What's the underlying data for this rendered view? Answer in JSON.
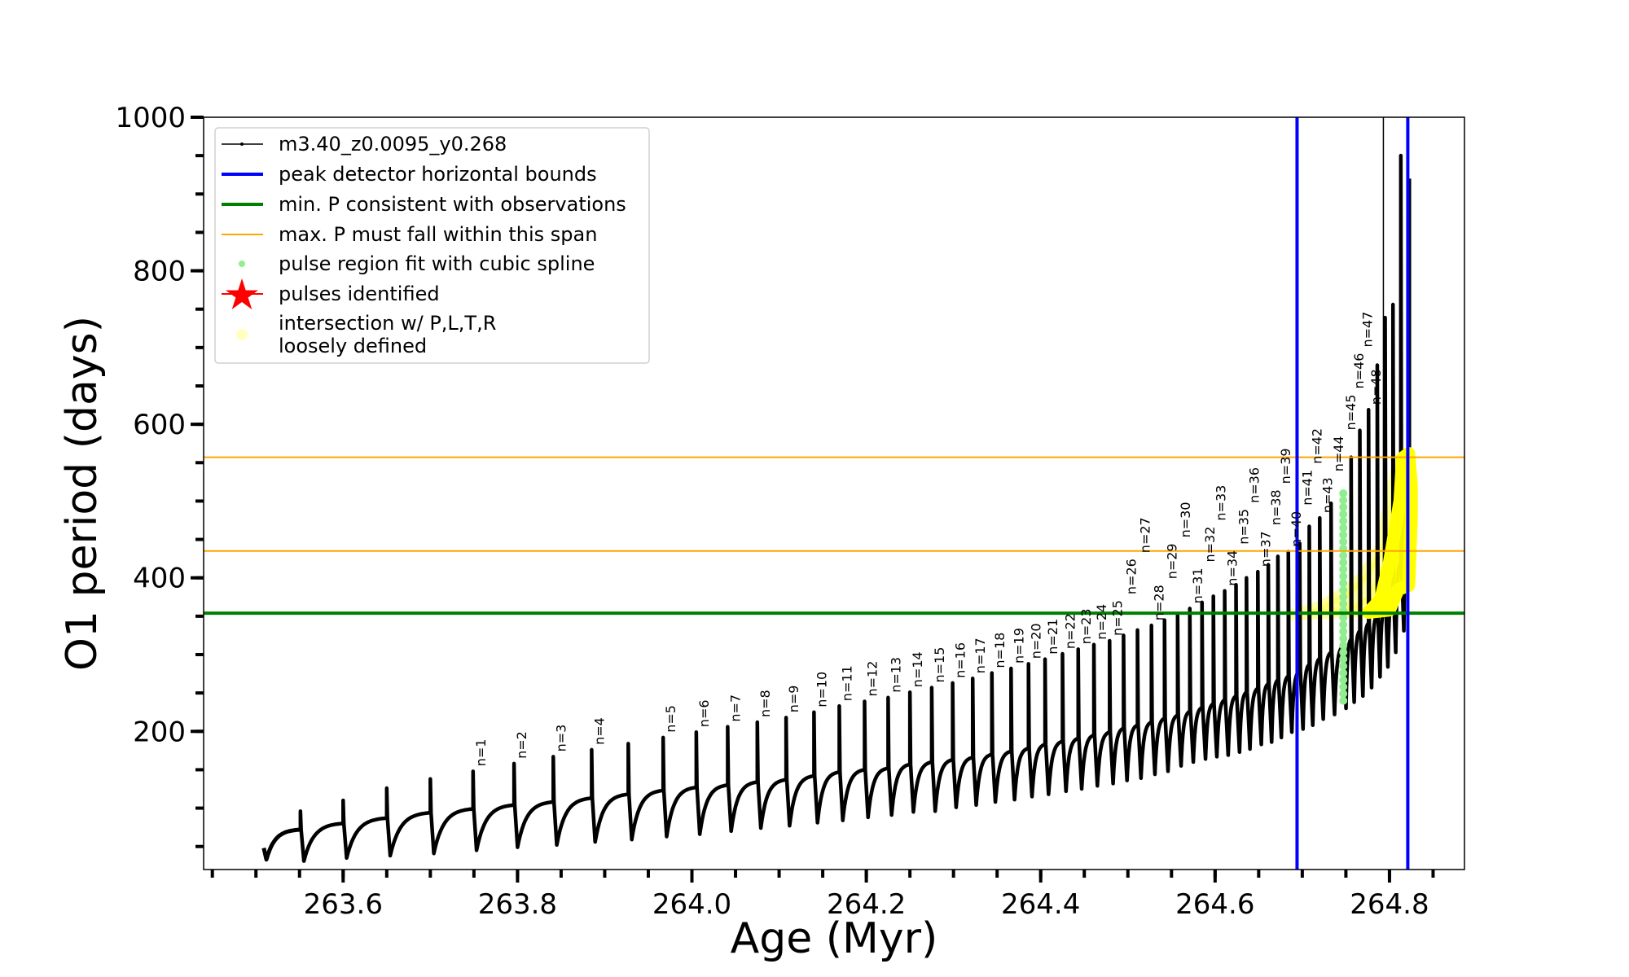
{
  "chart_data": {
    "type": "line",
    "xlabel": "Age (Myr)",
    "ylabel": "O1 period (days)",
    "xlim": [
      263.44,
      264.886
    ],
    "ylim": [
      20,
      1000
    ],
    "x_ticks": [
      "263.6",
      "263.8",
      "264.0",
      "264.2",
      "264.4",
      "264.6",
      "264.8"
    ],
    "x_minor_step": 0.05,
    "y_ticks": [
      "200",
      "400",
      "600",
      "800",
      "1000"
    ],
    "y_minor_step": 50,
    "grid": false,
    "legend_placement": "upper-left",
    "colors": {
      "track": "#000000",
      "peak_bounds": "#0000ff",
      "min_p": "#008000",
      "max_p_span": "#ffa500",
      "spline_fit": "#90ee90",
      "pulses_identified": "#ff0000",
      "intersection": "#ffff00"
    },
    "legend": [
      {
        "label": "m3.40_z0.0095_y0.268",
        "marker": "black-line-dot"
      },
      {
        "label": "peak detector horizontal bounds",
        "marker": "blue-thick-line"
      },
      {
        "label": "min. P consistent with observations",
        "marker": "green-thick-line"
      },
      {
        "label": "max. P must fall within this span",
        "marker": "orange-thin-line"
      },
      {
        "label": "pulse region fit with cubic spline",
        "marker": "lightgreen-dot"
      },
      {
        "label": "pulses identified",
        "marker": "red-star"
      },
      {
        "label": "intersection w/ P,L,T,R",
        "label2": "loosely defined",
        "marker": "lightyellow-circle"
      }
    ],
    "track_start": {
      "age": 263.509,
      "P_start": 48,
      "P_min": 33
    },
    "pulses": [
      {
        "age": 263.551,
        "pre": 72,
        "peak": 96,
        "trough": 31,
        "label": ""
      },
      {
        "age": 263.6,
        "pre": 80,
        "peak": 110,
        "trough": 35,
        "label": ""
      },
      {
        "age": 263.65,
        "pre": 87,
        "peak": 126,
        "trough": 38,
        "label": ""
      },
      {
        "age": 263.7,
        "pre": 94,
        "peak": 138,
        "trough": 41,
        "label": ""
      },
      {
        "age": 263.749,
        "pre": 99,
        "peak": 148,
        "trough": 45,
        "label": "n=1"
      },
      {
        "age": 263.796,
        "pre": 104,
        "peak": 158,
        "trough": 49,
        "label": "n=2"
      },
      {
        "age": 263.841,
        "pre": 108,
        "peak": 167,
        "trough": 52,
        "label": "n=3"
      },
      {
        "age": 263.885,
        "pre": 113,
        "peak": 176,
        "trough": 56,
        "label": "n=4"
      },
      {
        "age": 263.927,
        "pre": 118,
        "peak": 184,
        "trough": 59,
        "label": ""
      },
      {
        "age": 263.967,
        "pre": 123,
        "peak": 192,
        "trough": 63,
        "label": "n=5"
      },
      {
        "age": 264.005,
        "pre": 127,
        "peak": 199,
        "trough": 66,
        "label": "n=6"
      },
      {
        "age": 264.041,
        "pre": 130,
        "peak": 206,
        "trough": 70,
        "label": "n=7"
      },
      {
        "age": 264.075,
        "pre": 134,
        "peak": 212,
        "trough": 74,
        "label": "n=8"
      },
      {
        "age": 264.108,
        "pre": 137,
        "peak": 218,
        "trough": 77,
        "label": "n=9"
      },
      {
        "age": 264.14,
        "pre": 142,
        "peak": 225,
        "trough": 81,
        "label": "n=10"
      },
      {
        "age": 264.169,
        "pre": 147,
        "peak": 233,
        "trough": 84,
        "label": "n=11"
      },
      {
        "age": 264.198,
        "pre": 150,
        "peak": 239,
        "trough": 88,
        "label": "n=12"
      },
      {
        "age": 264.225,
        "pre": 152,
        "peak": 244,
        "trough": 91,
        "label": "n=13"
      },
      {
        "age": 264.25,
        "pre": 157,
        "peak": 251,
        "trough": 95,
        "label": "n=14"
      },
      {
        "age": 264.275,
        "pre": 160,
        "peak": 257,
        "trough": 96,
        "label": "n=15"
      },
      {
        "age": 264.299,
        "pre": 163,
        "peak": 263,
        "trough": 101,
        "label": "n=16"
      },
      {
        "age": 264.322,
        "pre": 166,
        "peak": 269,
        "trough": 104,
        "label": "n=17"
      },
      {
        "age": 264.344,
        "pre": 170,
        "peak": 276,
        "trough": 108,
        "label": "n=18"
      },
      {
        "age": 264.366,
        "pre": 174,
        "peak": 282,
        "trough": 111,
        "label": "n=19"
      },
      {
        "age": 264.386,
        "pre": 178,
        "peak": 288,
        "trough": 115,
        "label": "n=20"
      },
      {
        "age": 264.405,
        "pre": 183,
        "peak": 294,
        "trough": 118,
        "label": "n=21"
      },
      {
        "age": 264.425,
        "pre": 187,
        "peak": 301,
        "trough": 122,
        "label": "n=22"
      },
      {
        "age": 264.443,
        "pre": 191,
        "peak": 307,
        "trough": 125,
        "label": "n=23"
      },
      {
        "age": 264.461,
        "pre": 195,
        "peak": 313,
        "trough": 129,
        "label": "n=24"
      },
      {
        "age": 264.479,
        "pre": 199,
        "peak": 318,
        "trough": 132,
        "label": "n=25"
      },
      {
        "age": 264.495,
        "pre": 204,
        "peak": 325,
        "trough": 136,
        "label": "n=26"
      },
      {
        "age": 264.511,
        "pre": 208,
        "peak": 332,
        "trough": 139,
        "label": "n=27"
      },
      {
        "age": 264.527,
        "pre": 212,
        "peak": 338,
        "trough": 144,
        "label": "n=28"
      },
      {
        "age": 264.542,
        "pre": 217,
        "peak": 345,
        "trough": 148,
        "label": "n=29"
      },
      {
        "age": 264.557,
        "pre": 221,
        "peak": 351,
        "trough": 155,
        "label": "n=30"
      },
      {
        "age": 264.571,
        "pre": 226,
        "peak": 360,
        "trough": 160,
        "label": "n=31"
      },
      {
        "age": 264.585,
        "pre": 231,
        "peak": 368,
        "trough": 164,
        "label": "n=32"
      },
      {
        "age": 264.598,
        "pre": 236,
        "peak": 376,
        "trough": 167,
        "label": "n=33"
      },
      {
        "age": 264.611,
        "pre": 241,
        "peak": 383,
        "trough": 169,
        "label": "n=34"
      },
      {
        "age": 264.624,
        "pre": 246,
        "peak": 391,
        "trough": 173,
        "label": "n=35"
      },
      {
        "age": 264.636,
        "pre": 251,
        "peak": 400,
        "trough": 177,
        "label": "n=36"
      },
      {
        "age": 264.649,
        "pre": 256,
        "peak": 408,
        "trough": 183,
        "label": "n=37"
      },
      {
        "age": 264.661,
        "pre": 262,
        "peak": 417,
        "trough": 186,
        "label": "n=38"
      },
      {
        "age": 264.672,
        "pre": 267,
        "peak": 428,
        "trough": 192,
        "label": "n=39"
      },
      {
        "age": 264.684,
        "pre": 272,
        "peak": 434,
        "trough": 199,
        "label": "n=40"
      },
      {
        "age": 264.697,
        "pre": 279,
        "peak": 445,
        "trough": 203,
        "label": "n=41"
      },
      {
        "age": 264.708,
        "pre": 287,
        "peak": 467,
        "trough": 208,
        "label": "n=42"
      },
      {
        "age": 264.72,
        "pre": 295,
        "peak": 478,
        "trough": 216,
        "label": "n=43"
      },
      {
        "age": 264.733,
        "pre": 303,
        "peak": 497,
        "trough": 222,
        "label": "n=44"
      },
      {
        "age": 264.747,
        "pre": 311,
        "peak": 510,
        "trough": 230,
        "label": "n=45"
      },
      {
        "age": 264.756,
        "pre": 320,
        "peak": 557,
        "trough": 238,
        "label": "n=46"
      },
      {
        "age": 264.766,
        "pre": 331,
        "peak": 592,
        "trough": 246,
        "label": "n=47"
      },
      {
        "age": 264.776,
        "pre": 341,
        "peak": 619,
        "trough": 257,
        "label": "n=48"
      },
      {
        "age": 264.786,
        "pre": 352,
        "peak": 677,
        "trough": 271,
        "label": ""
      },
      {
        "age": 264.795,
        "pre": 363,
        "peak": 739,
        "trough": 284,
        "label": ""
      },
      {
        "age": 264.804,
        "pre": 377,
        "peak": 756,
        "trough": 303,
        "label": ""
      },
      {
        "age": 264.813,
        "pre": 420,
        "peak": 950,
        "trough": 331,
        "label": ""
      }
    ],
    "track_end": {
      "age": 264.823,
      "P_before": 560,
      "P_spike": 920
    },
    "peak_detector_bounds": [
      264.694,
      264.821
    ],
    "min_P": 354,
    "max_P_span": [
      435,
      557
    ],
    "tall_line": {
      "age": 264.793,
      "P_from": 360,
      "P_to": 1000
    },
    "spline_fit": {
      "age": 264.747,
      "P_from": 240,
      "P_to": 516
    },
    "intersection_region": {
      "loose": [
        [
          264.69,
          352
        ],
        [
          264.72,
          362
        ],
        [
          264.75,
          382
        ],
        [
          264.77,
          402
        ],
        [
          264.79,
          440
        ],
        [
          264.8,
          500
        ],
        [
          264.81,
          550
        ],
        [
          264.815,
          530
        ],
        [
          264.8,
          420
        ],
        [
          264.78,
          372
        ],
        [
          264.76,
          356
        ],
        [
          264.69,
          352
        ]
      ],
      "dense": [
        [
          264.776,
          355
        ],
        [
          264.79,
          372
        ],
        [
          264.8,
          420
        ],
        [
          264.812,
          500
        ],
        [
          264.815,
          556
        ],
        [
          264.822,
          562
        ],
        [
          264.825,
          520
        ],
        [
          264.825,
          480
        ],
        [
          264.822,
          390
        ],
        [
          264.81,
          385
        ],
        [
          264.8,
          358
        ],
        [
          264.776,
          355
        ]
      ]
    }
  }
}
